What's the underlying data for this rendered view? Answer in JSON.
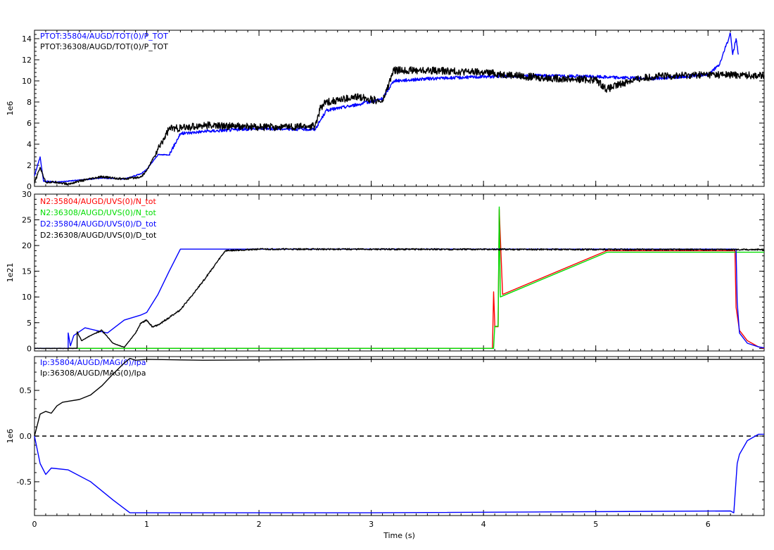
{
  "chart_data": {
    "type": "line",
    "xlabel": "Time (s)",
    "xlim": [
      0,
      6.5
    ],
    "x_ticks": [
      0,
      1,
      2,
      3,
      4,
      5,
      6
    ],
    "x_tick_labels": [
      "0",
      "1",
      "2",
      "3",
      "4",
      "5",
      "6"
    ],
    "panels": [
      {
        "ylabel": "1e6",
        "ylim": [
          0,
          14.8
        ],
        "y_ticks": [
          0,
          2,
          4,
          6,
          8,
          10,
          12,
          14
        ],
        "y_tick_labels": [
          "0",
          "2",
          "4",
          "6",
          "8",
          "10",
          "12",
          "14"
        ],
        "zero_line": false,
        "series": [
          {
            "name": "PTOT:35804/AUGD/TOT(0)/P_TOT",
            "color": "#0000ff",
            "noise": 0.15,
            "x": [
              0,
              0.05,
              0.08,
              0.1,
              0.2,
              0.4,
              0.6,
              0.8,
              0.95,
              1.0,
              1.1,
              1.2,
              1.3,
              1.5,
              2.0,
              2.5,
              2.6,
              2.9,
              3.1,
              3.2,
              3.5,
              4.0,
              4.5,
              5.0,
              5.5,
              6.0,
              6.1,
              6.2,
              6.22,
              6.25,
              6.27
            ],
            "y": [
              1.0,
              2.8,
              0.5,
              0.5,
              0.4,
              0.6,
              0.8,
              0.7,
              1.2,
              1.6,
              3.0,
              3.0,
              5.0,
              5.2,
              5.5,
              5.4,
              7.2,
              7.8,
              8.3,
              10.0,
              10.2,
              10.4,
              10.5,
              10.4,
              10.2,
              10.6,
              11.5,
              14.5,
              12.5,
              14.0,
              12.5
            ]
          },
          {
            "name": "PTOT:36308/AUGD/TOT(0)/P_TOT",
            "color": "#000000",
            "noise": 0.35,
            "x": [
              0,
              0.05,
              0.1,
              0.2,
              0.3,
              0.4,
              0.6,
              0.8,
              0.95,
              1.0,
              1.1,
              1.2,
              1.3,
              1.5,
              2.0,
              2.5,
              2.55,
              2.6,
              2.9,
              3.1,
              3.2,
              3.5,
              4.0,
              4.5,
              5.0,
              5.1,
              5.3,
              5.5,
              6.0,
              6.5
            ],
            "y": [
              0.3,
              1.8,
              0.4,
              0.4,
              0.2,
              0.5,
              0.9,
              0.7,
              0.9,
              1.5,
              3.5,
              5.5,
              5.5,
              5.8,
              5.6,
              5.7,
              7.5,
              8.0,
              8.5,
              8.0,
              11.0,
              11.0,
              10.8,
              10.3,
              10.1,
              9.2,
              10.0,
              10.4,
              10.6,
              10.5
            ]
          }
        ]
      },
      {
        "ylabel": "1e21",
        "ylim": [
          -0.5,
          30
        ],
        "y_ticks": [
          0,
          5,
          10,
          15,
          20,
          25,
          30
        ],
        "y_tick_labels": [
          "0",
          "5",
          "10",
          "15",
          "20",
          "25",
          "30"
        ],
        "zero_line": false,
        "series": [
          {
            "name": "N2:35804/AUGD/UVS(0)/N_tot",
            "color": "#ff0000",
            "noise": 0,
            "x": [
              0,
              4.08,
              4.09,
              4.1,
              4.1,
              4.13,
              4.14,
              4.17,
              5.1,
              6.0,
              6.24,
              6.25,
              6.28,
              6.35,
              6.45,
              6.5
            ],
            "y": [
              0,
              0,
              11.0,
              5.0,
              4.2,
              4.2,
              27.0,
              10.5,
              19.0,
              19.0,
              19.0,
              8.0,
              3.5,
              1.5,
              0.3,
              0
            ],
            "x_extra": [],
            "y_extra": []
          },
          {
            "name": "N2:36308/AUGD/UVS(0)/N_tot",
            "color": "#00dd00",
            "noise": 0,
            "x": [
              0,
              4.09,
              4.1,
              4.13,
              4.14,
              4.15,
              4.17,
              5.1,
              6.5
            ],
            "y": [
              0,
              0,
              4.3,
              4.3,
              27.5,
              10.0,
              10.2,
              18.7,
              18.7
            ]
          },
          {
            "name": "D2:35804/AUGD/UVS(0)/D_tot",
            "color": "#0000ff",
            "noise": 0,
            "x": [
              0,
              0.3,
              0.3,
              0.32,
              0.35,
              0.45,
              0.55,
              0.65,
              0.8,
              0.95,
              1.0,
              1.1,
              1.2,
              1.3,
              6.25,
              6.26,
              6.28,
              6.35,
              6.45,
              6.5
            ],
            "y": [
              0,
              0,
              3.0,
              0.5,
              2.5,
              4.0,
              3.5,
              3.0,
              5.5,
              6.5,
              7.0,
              10.5,
              15.0,
              19.3,
              19.3,
              9.0,
              3.0,
              1.0,
              0.3,
              0.1
            ]
          },
          {
            "name": "D2:36308/AUGD/UVS(0)/D_tot",
            "color": "#000000",
            "noise": 0.15,
            "x": [
              0,
              0.38,
              0.38,
              0.42,
              0.5,
              0.6,
              0.7,
              0.8,
              0.9,
              0.95,
              1.0,
              1.05,
              1.1,
              1.3,
              1.5,
              1.7,
              1.8,
              2.0,
              6.5
            ],
            "y": [
              0,
              0,
              3.2,
              1.5,
              2.5,
              3.5,
              1.0,
              0.2,
              3.0,
              5.0,
              5.5,
              4.2,
              4.5,
              7.5,
              13.0,
              19.0,
              19.1,
              19.3,
              19.2
            ]
          }
        ]
      },
      {
        "ylabel": "1e6",
        "ylim": [
          -0.87,
          0.87
        ],
        "y_ticks": [
          -0.5,
          0,
          0.5
        ],
        "y_tick_labels": [
          "-0.5",
          "0.0",
          "0.5"
        ],
        "zero_line": true,
        "series": [
          {
            "name": "Ip:35804/AUGD/MAG(0)/Ipa",
            "color": "#0000ff",
            "noise": 0,
            "x": [
              0,
              0.05,
              0.1,
              0.15,
              0.3,
              0.5,
              0.7,
              0.85,
              1.0,
              3.0,
              6.2,
              6.23,
              6.26,
              6.28,
              6.35,
              6.45,
              6.5
            ],
            "y": [
              0,
              -0.3,
              -0.42,
              -0.35,
              -0.37,
              -0.5,
              -0.7,
              -0.84,
              -0.84,
              -0.84,
              -0.82,
              -0.84,
              -0.3,
              -0.2,
              -0.05,
              0.02,
              0.02
            ]
          },
          {
            "name": "Ip:36308/AUGD/MAG(0)/Ipa",
            "color": "#000000",
            "noise": 0,
            "x": [
              0,
              0.05,
              0.1,
              0.15,
              0.2,
              0.25,
              0.3,
              0.4,
              0.5,
              0.6,
              0.7,
              0.8,
              0.85,
              0.9,
              1.0,
              1.5,
              3.0,
              6.5
            ],
            "y": [
              0,
              0.24,
              0.27,
              0.25,
              0.33,
              0.37,
              0.38,
              0.4,
              0.45,
              0.55,
              0.68,
              0.8,
              0.85,
              0.83,
              0.84,
              0.83,
              0.84,
              0.84
            ]
          }
        ]
      }
    ]
  }
}
